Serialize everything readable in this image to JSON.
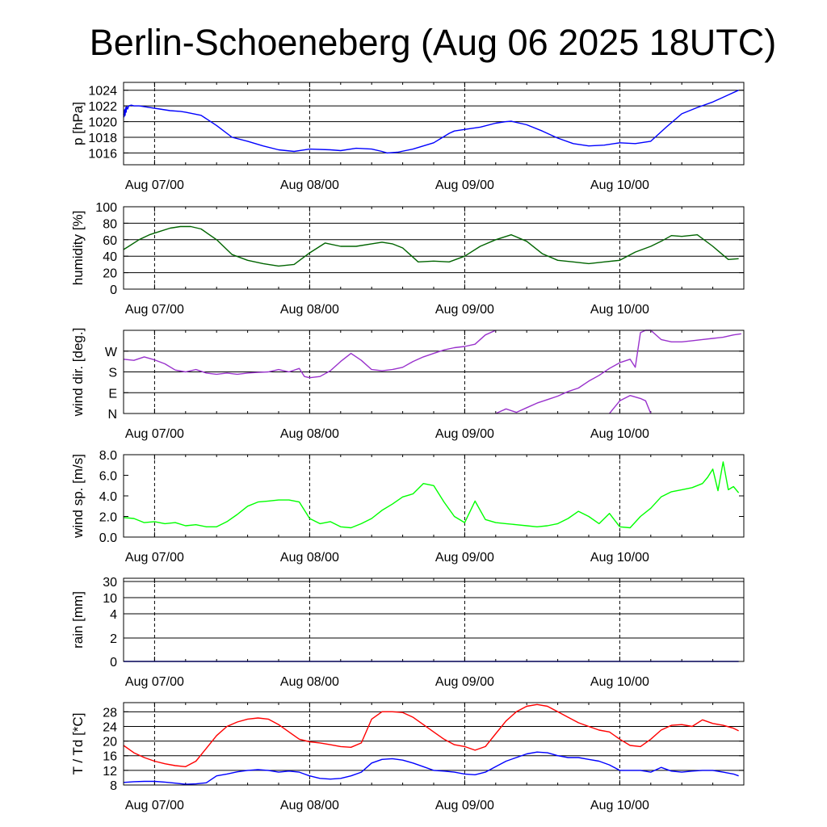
{
  "title": "Berlin-Schoeneberg (Aug 06 2025 18UTC)",
  "chart_data": [
    {
      "id": "pressure",
      "type": "line",
      "ylabel": "p [hPa]",
      "ylim": [
        1014.5,
        1025
      ],
      "yticks": [
        1016,
        1018,
        1020,
        1022,
        1024
      ],
      "ytick_labels": [
        "1016",
        "1018",
        "1020",
        "1022",
        "1024"
      ],
      "grid": true,
      "series": [
        {
          "color": "#0000ff",
          "x": [
            0,
            0.1,
            0.2,
            0.3,
            0.4,
            0.5,
            0.6,
            0.8,
            1,
            1.5,
            2,
            3,
            5,
            7,
            9,
            11,
            12,
            15,
            18,
            21,
            24,
            27,
            30,
            33,
            36,
            40,
            42,
            45,
            48,
            50,
            51,
            53,
            56,
            60,
            63,
            64,
            67,
            69,
            72,
            74,
            75,
            78,
            81,
            84,
            87,
            90,
            93,
            96,
            99,
            102,
            105,
            108,
            111,
            114,
            117,
            119
          ],
          "y": [
            1021,
            1020.6,
            1021.5,
            1020.8,
            1021.8,
            1021.2,
            1021.9,
            1021.6,
            1022,
            1022.1,
            1022,
            1022,
            1021.8,
            1021.6,
            1021.4,
            1021.3,
            1021.2,
            1020.8,
            1019.5,
            1018,
            1017.5,
            1016.9,
            1016.4,
            1016.2,
            1016.5,
            1016.4,
            1016.3,
            1016.6,
            1016.5,
            1016.2,
            1016,
            1016.1,
            1016.5,
            1017.3,
            1018.5,
            1018.8,
            1019.1,
            1019.3,
            1019.8,
            1020,
            1020.05,
            1019.6,
            1018.8,
            1017.9,
            1017.2,
            1016.9,
            1017,
            1017.3,
            1017.2,
            1017.5,
            1019.3,
            1021,
            1021.8,
            1022.5,
            1023.4,
            1024
          ]
        }
      ]
    },
    {
      "id": "humidity",
      "type": "line",
      "ylabel": "humidity [%]",
      "ylim": [
        0,
        100
      ],
      "yticks": [
        0,
        20,
        40,
        60,
        80,
        100
      ],
      "ytick_labels": [
        "0",
        "20",
        "40",
        "60",
        "80",
        "100"
      ],
      "grid": true,
      "series": [
        {
          "color": "#006400",
          "x": [
            0,
            1,
            3,
            5,
            7,
            9,
            11,
            13,
            15,
            18,
            21,
            24,
            27,
            30,
            33,
            36,
            39,
            42,
            45,
            48,
            50,
            52,
            54,
            57,
            60,
            63,
            66,
            69,
            72,
            75,
            78,
            81,
            84,
            87,
            90,
            93,
            96,
            99,
            102,
            104,
            106,
            108,
            111,
            114,
            117,
            119
          ],
          "y": [
            48,
            52,
            60,
            66,
            70,
            74,
            76,
            76,
            73,
            60,
            42,
            35,
            31,
            28,
            30,
            44,
            56,
            52,
            52,
            55,
            57,
            55,
            50,
            33,
            34,
            33,
            40,
            52,
            60,
            66,
            58,
            43,
            35,
            33,
            31,
            33,
            35,
            45,
            52,
            58,
            65,
            64,
            66,
            52,
            36,
            37
          ]
        }
      ]
    },
    {
      "id": "wind-direction",
      "type": "line",
      "ylabel": "wind dir. [deg.]",
      "ylim": [
        0,
        360
      ],
      "yticks": [
        0,
        90,
        180,
        270
      ],
      "ytick_labels": [
        "N",
        "E",
        "S",
        "W"
      ],
      "grid": true,
      "series": [
        {
          "color": "#9932cc",
          "x": [
            0,
            2,
            4,
            6,
            8,
            10,
            12,
            14,
            16,
            18,
            20,
            22,
            24,
            26,
            28,
            30,
            32,
            34,
            35,
            36,
            38,
            40,
            42,
            44,
            46,
            48,
            50,
            52,
            54,
            56,
            58,
            60,
            62,
            64,
            66,
            68,
            70,
            72
          ],
          "y": [
            235,
            230,
            245,
            232,
            215,
            188,
            180,
            190,
            175,
            170,
            175,
            170,
            175,
            178,
            180,
            190,
            180,
            195,
            160,
            155,
            160,
            185,
            225,
            260,
            230,
            190,
            185,
            190,
            200,
            225,
            245,
            260,
            275,
            285,
            290,
            300,
            340,
            360
          ]
        },
        {
          "color": "#9932cc",
          "x": [
            72,
            74,
            76,
            78,
            80,
            82,
            84,
            86,
            88,
            90,
            92,
            94,
            96,
            98,
            99,
            100,
            101,
            102,
            104,
            106,
            108,
            110,
            112,
            114,
            116,
            118,
            119.5
          ],
          "y": [
            0,
            20,
            5,
            25,
            45,
            60,
            75,
            95,
            110,
            140,
            165,
            195,
            220,
            235,
            200,
            350,
            360,
            360,
            320,
            310,
            310,
            315,
            320,
            325,
            330,
            340,
            345
          ]
        },
        {
          "color": "#9932cc",
          "x": [
            94,
            96,
            98,
            100,
            101,
            102
          ],
          "y": [
            0,
            55,
            78,
            65,
            55,
            0
          ]
        }
      ]
    },
    {
      "id": "wind-speed",
      "type": "line",
      "ylabel": "wind sp. [m/s]",
      "ylim": [
        0,
        8
      ],
      "yticks": [
        0,
        2,
        4,
        6,
        8
      ],
      "ytick_labels": [
        "0.0",
        "2.0",
        "4.0",
        "6.0",
        "8.0"
      ],
      "grid": false,
      "series": [
        {
          "color": "#00ff00",
          "x": [
            0,
            2,
            4,
            6,
            8,
            10,
            12,
            14,
            16,
            18,
            20,
            22,
            24,
            26,
            28,
            30,
            32,
            34,
            36,
            38,
            40,
            42,
            44,
            46,
            48,
            50,
            52,
            54,
            56,
            58,
            60,
            62,
            64,
            66,
            68,
            70,
            72,
            74,
            76,
            78,
            80,
            82,
            84,
            86,
            88,
            90,
            92,
            94,
            96,
            98,
            100,
            102,
            104,
            106,
            108,
            110,
            112,
            113,
            114,
            115,
            116,
            117,
            118,
            119
          ],
          "y": [
            1.9,
            1.8,
            1.4,
            1.5,
            1.3,
            1.4,
            1.1,
            1.2,
            1.0,
            1.0,
            1.5,
            2.2,
            3.0,
            3.4,
            3.5,
            3.6,
            3.6,
            3.4,
            1.8,
            1.3,
            1.5,
            1.0,
            0.9,
            1.3,
            1.8,
            2.6,
            3.2,
            3.9,
            4.2,
            5.2,
            5.0,
            3.4,
            2.0,
            1.4,
            3.5,
            1.7,
            1.4,
            1.3,
            1.2,
            1.1,
            1.0,
            1.1,
            1.3,
            1.8,
            2.5,
            2.0,
            1.3,
            2.3,
            1.0,
            0.9,
            2.0,
            2.8,
            3.9,
            4.4,
            4.6,
            4.8,
            5.2,
            5.8,
            6.6,
            4.5,
            7.3,
            4.6,
            4.9,
            4.3
          ]
        }
      ]
    },
    {
      "id": "rain",
      "type": "line",
      "ylabel": "rain [mm]",
      "yscale": "nonlinear",
      "ylim": [
        0,
        30
      ],
      "yticks": [
        0,
        2,
        4,
        10,
        30
      ],
      "ytick_labels": [
        "0",
        "2",
        "4",
        "10",
        "30"
      ],
      "grid": true,
      "series": [
        {
          "color": "#0000ff",
          "x": [
            0,
            119
          ],
          "y": [
            0,
            0
          ]
        }
      ]
    },
    {
      "id": "temperature",
      "type": "line",
      "ylabel": "T / Td [*C]",
      "ylim": [
        8,
        30.5
      ],
      "yticks": [
        8,
        12,
        16,
        20,
        24,
        28
      ],
      "ytick_labels": [
        "8",
        "12",
        "16",
        "20",
        "24",
        "28"
      ],
      "grid": true,
      "series": [
        {
          "color": "#ff0000",
          "x": [
            0,
            2,
            4,
            6,
            8,
            10,
            12,
            14,
            16,
            18,
            20,
            22,
            24,
            26,
            28,
            30,
            32,
            34,
            36,
            38,
            40,
            42,
            44,
            46,
            48,
            50,
            52,
            54,
            56,
            58,
            60,
            62,
            64,
            66,
            68,
            70,
            72,
            74,
            76,
            78,
            80,
            82,
            84,
            86,
            88,
            90,
            92,
            94,
            96,
            98,
            100,
            102,
            104,
            106,
            108,
            110,
            112,
            114,
            116,
            118,
            119
          ],
          "y": [
            18.8,
            16.8,
            15.5,
            14.5,
            13.8,
            13.3,
            13.0,
            14.5,
            18.0,
            21.5,
            24.0,
            25.2,
            26.0,
            26.3,
            26.0,
            24.5,
            22.5,
            20.5,
            19.8,
            19.5,
            19.0,
            18.5,
            18.3,
            19.5,
            26.0,
            28.0,
            28.0,
            27.8,
            26.5,
            24.5,
            22.5,
            20.5,
            19.0,
            18.5,
            17.5,
            18.5,
            22.0,
            25.5,
            28.0,
            29.5,
            30.0,
            29.5,
            28.0,
            26.5,
            25.0,
            24.0,
            23.0,
            22.5,
            20.5,
            18.8,
            18.5,
            20.5,
            23.0,
            24.3,
            24.5,
            24.0,
            25.8,
            24.8,
            24.3,
            23.5,
            22.8
          ]
        },
        {
          "color": "#0000ff",
          "x": [
            0,
            2,
            4,
            6,
            8,
            10,
            12,
            14,
            16,
            18,
            20,
            22,
            24,
            26,
            28,
            30,
            32,
            34,
            36,
            38,
            40,
            42,
            44,
            46,
            48,
            50,
            52,
            54,
            56,
            58,
            60,
            62,
            64,
            66,
            68,
            70,
            72,
            74,
            76,
            78,
            80,
            82,
            84,
            86,
            88,
            90,
            92,
            94,
            96,
            98,
            100,
            102,
            104,
            106,
            108,
            110,
            112,
            114,
            116,
            118,
            119
          ],
          "y": [
            8.7,
            8.9,
            9.0,
            9.0,
            8.8,
            8.5,
            8.2,
            8.3,
            8.6,
            10.5,
            11.0,
            11.6,
            12.0,
            12.2,
            12.0,
            11.5,
            11.8,
            11.5,
            10.5,
            9.8,
            9.6,
            9.8,
            10.5,
            11.5,
            14.0,
            15.0,
            15.2,
            14.8,
            14.0,
            13.0,
            12.0,
            11.8,
            11.5,
            11.0,
            10.8,
            11.5,
            13.0,
            14.5,
            15.5,
            16.5,
            17.0,
            16.8,
            16.0,
            15.5,
            15.5,
            15.0,
            14.5,
            13.5,
            12.0,
            12.0,
            12.0,
            11.5,
            12.8,
            11.8,
            11.5,
            11.8,
            12.0,
            12.0,
            11.5,
            11.0,
            10.5
          ]
        }
      ]
    }
  ],
  "x_axis": {
    "unit": "hours from Aug 06 18UTC",
    "range": [
      0,
      120
    ],
    "day_lines": [
      6,
      36,
      66,
      96
    ],
    "tick_labels": [
      {
        "x": 6,
        "label": "Aug 07/00"
      },
      {
        "x": 36,
        "label": "Aug 08/00"
      },
      {
        "x": 66,
        "label": "Aug 09/00"
      },
      {
        "x": 96,
        "label": "Aug 10/00"
      }
    ]
  }
}
